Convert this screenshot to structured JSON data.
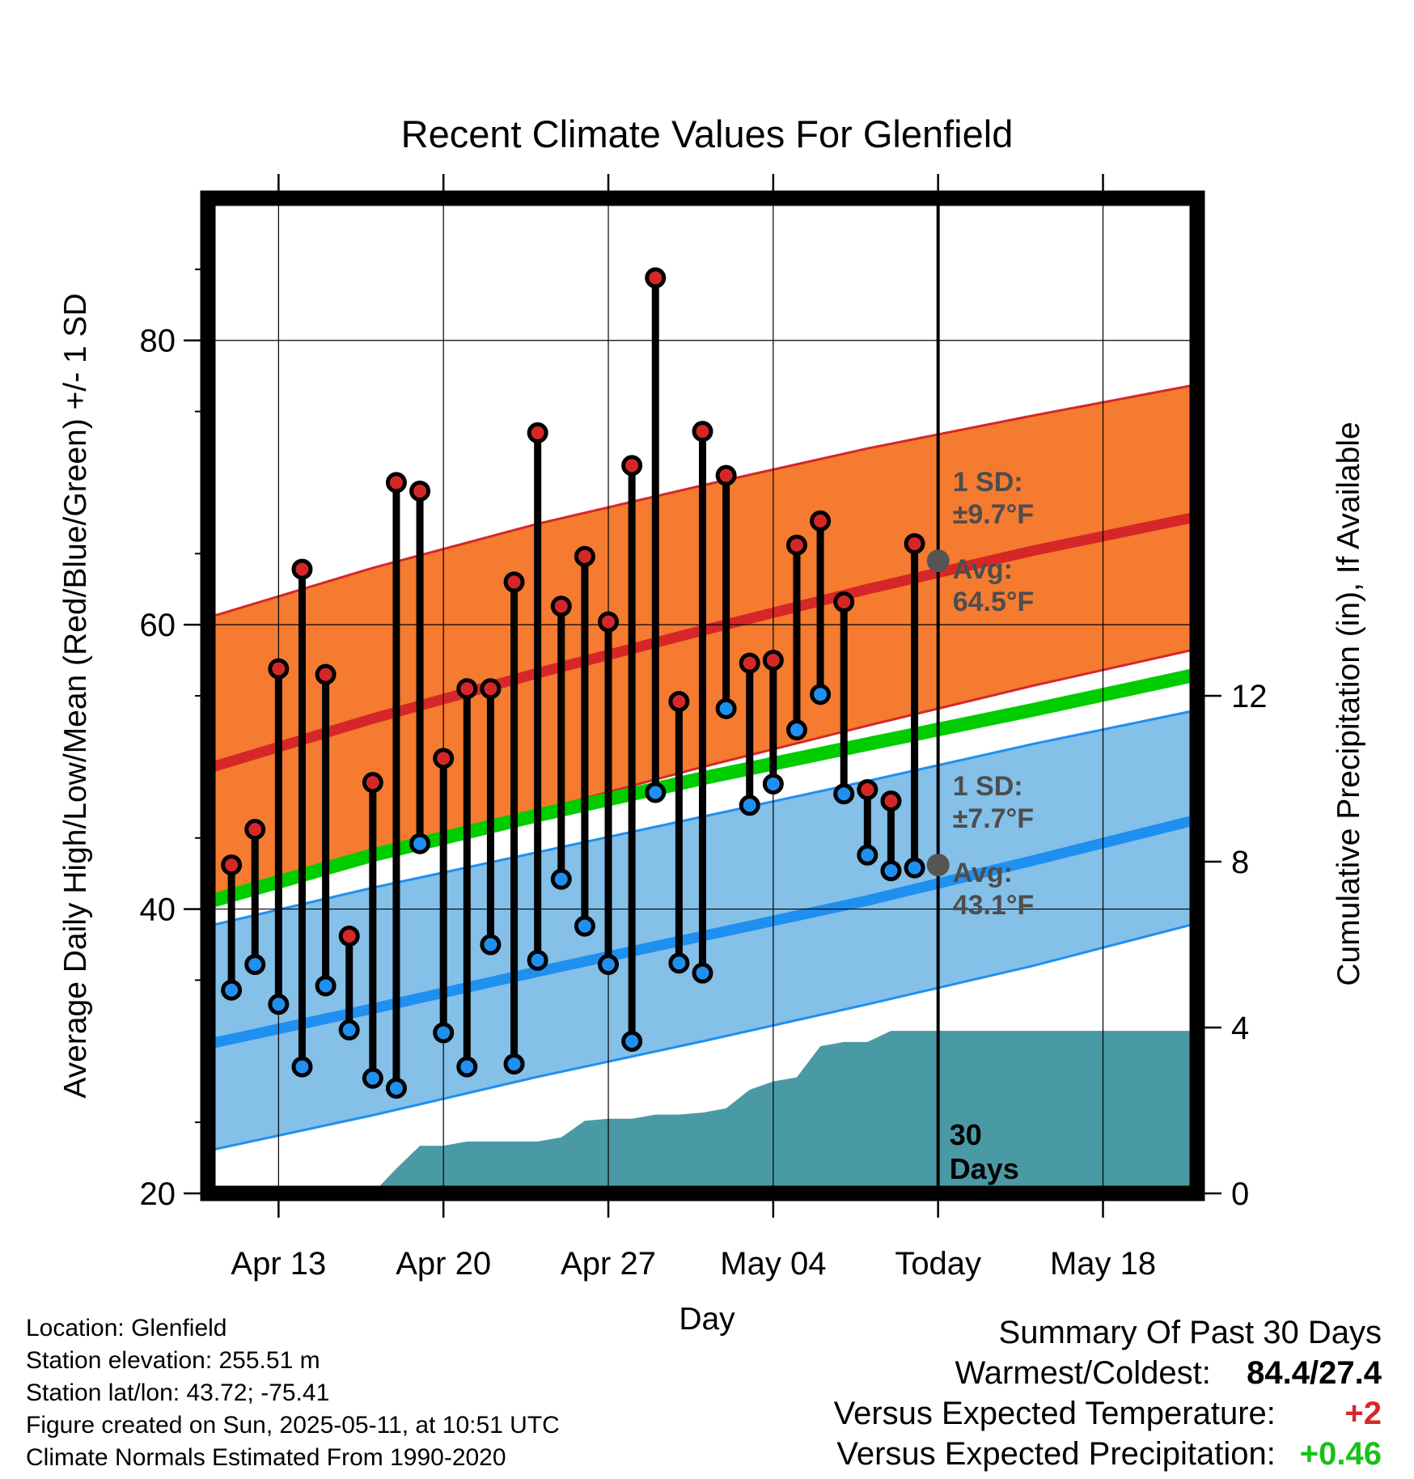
{
  "chart_data": {
    "type": "line",
    "title": "Recent Climate Values For Glenfield",
    "xlabel": "Day",
    "ylabel": "Average Daily High/Low/Mean (Red/Blue/Green) +/- 1 SD",
    "y2label": "Cumulative Precipitation (in), If Available",
    "ylim": [
      20,
      90
    ],
    "y2lim": [
      0,
      24
    ],
    "xlim": [
      "2025-04-10",
      "2025-05-22"
    ],
    "x_ticks": [
      {
        "date": "2025-04-13",
        "label": "Apr 13"
      },
      {
        "date": "2025-04-20",
        "label": "Apr 20"
      },
      {
        "date": "2025-04-27",
        "label": "Apr 27"
      },
      {
        "date": "2025-05-04",
        "label": "May 04"
      },
      {
        "date": "2025-05-11",
        "label": "Today"
      },
      {
        "date": "2025-05-18",
        "label": "May 18"
      }
    ],
    "y_ticks": [
      20,
      40,
      60,
      80
    ],
    "y2_ticks": [
      0,
      4,
      8,
      12
    ],
    "grid": true,
    "today": "2025-05-11",
    "normals": {
      "x": [
        "2025-04-10",
        "2025-04-17",
        "2025-04-24",
        "2025-05-01",
        "2025-05-08",
        "2025-05-15",
        "2025-05-22"
      ],
      "high_avg": [
        49.9,
        53.4,
        56.6,
        59.6,
        62.5,
        65.2,
        67.6
      ],
      "high_upper": [
        60.5,
        64.0,
        67.1,
        69.8,
        72.4,
        74.7,
        76.9
      ],
      "high_lower": [
        40.3,
        43.7,
        46.9,
        50.0,
        52.9,
        55.7,
        58.3
      ],
      "mean_avg": [
        40.5,
        43.8,
        46.6,
        49.2,
        51.6,
        54.0,
        56.5
      ],
      "low_avg": [
        30.5,
        33.0,
        35.6,
        38.1,
        40.6,
        43.4,
        46.3
      ],
      "low_upper": [
        38.8,
        41.5,
        44.0,
        46.5,
        49.0,
        51.6,
        54.0
      ],
      "low_lower": [
        23.0,
        25.5,
        28.2,
        30.7,
        33.3,
        36.0,
        39.0
      ]
    },
    "series": [
      {
        "name": "Daily High",
        "color": "#d62728",
        "x": [
          "2025-04-11",
          "2025-04-12",
          "2025-04-13",
          "2025-04-14",
          "2025-04-15",
          "2025-04-16",
          "2025-04-17",
          "2025-04-18",
          "2025-04-19",
          "2025-04-20",
          "2025-04-21",
          "2025-04-22",
          "2025-04-23",
          "2025-04-24",
          "2025-04-25",
          "2025-04-26",
          "2025-04-27",
          "2025-04-28",
          "2025-04-29",
          "2025-04-30",
          "2025-05-01",
          "2025-05-02",
          "2025-05-03",
          "2025-05-04",
          "2025-05-05",
          "2025-05-06",
          "2025-05-07",
          "2025-05-08",
          "2025-05-09",
          "2025-05-10"
        ],
        "values": [
          43.1,
          45.6,
          56.9,
          63.9,
          56.5,
          38.1,
          48.9,
          70.0,
          69.4,
          50.6,
          55.5,
          55.5,
          63.0,
          73.5,
          61.3,
          64.8,
          60.2,
          71.2,
          84.4,
          54.6,
          73.6,
          70.5,
          57.3,
          57.5,
          65.6,
          67.3,
          61.6,
          48.4,
          47.6,
          65.7
        ]
      },
      {
        "name": "Daily Low",
        "color": "#1f8ff0",
        "x": [
          "2025-04-11",
          "2025-04-12",
          "2025-04-13",
          "2025-04-14",
          "2025-04-15",
          "2025-04-16",
          "2025-04-17",
          "2025-04-18",
          "2025-04-19",
          "2025-04-20",
          "2025-04-21",
          "2025-04-22",
          "2025-04-23",
          "2025-04-24",
          "2025-04-25",
          "2025-04-26",
          "2025-04-27",
          "2025-04-28",
          "2025-04-29",
          "2025-04-30",
          "2025-05-01",
          "2025-05-02",
          "2025-05-03",
          "2025-05-04",
          "2025-05-05",
          "2025-05-06",
          "2025-05-07",
          "2025-05-08",
          "2025-05-09",
          "2025-05-10"
        ],
        "values": [
          34.3,
          36.1,
          33.3,
          28.9,
          34.6,
          31.5,
          28.1,
          27.4,
          44.6,
          31.3,
          28.9,
          37.5,
          29.1,
          36.4,
          42.1,
          38.8,
          36.1,
          30.7,
          48.2,
          36.2,
          35.5,
          54.1,
          47.3,
          48.8,
          52.6,
          55.1,
          48.1,
          43.8,
          42.7,
          42.9
        ]
      },
      {
        "name": "Cumulative Precipitation",
        "axis": "right",
        "color": "#4a9aa5",
        "x": [
          "2025-04-10",
          "2025-04-17",
          "2025-04-18",
          "2025-04-19",
          "2025-04-20",
          "2025-04-21",
          "2025-04-22",
          "2025-04-23",
          "2025-04-24",
          "2025-04-25",
          "2025-04-26",
          "2025-04-27",
          "2025-04-28",
          "2025-04-29",
          "2025-04-30",
          "2025-05-01",
          "2025-05-02",
          "2025-05-03",
          "2025-05-04",
          "2025-05-05",
          "2025-05-06",
          "2025-05-07",
          "2025-05-08",
          "2025-05-09",
          "2025-05-22"
        ],
        "values": [
          0.0,
          0.0,
          0.6,
          1.15,
          1.15,
          1.25,
          1.25,
          1.25,
          1.25,
          1.35,
          1.75,
          1.8,
          1.8,
          1.9,
          1.9,
          1.95,
          2.05,
          2.5,
          2.7,
          2.8,
          3.55,
          3.65,
          3.65,
          3.92,
          3.92
        ]
      }
    ],
    "annotations": {
      "high_sd_line1": "1 SD:",
      "high_sd_line2": "±9.7°F",
      "high_avg_line1": "Avg:",
      "high_avg_line2": "64.5°F",
      "low_sd_line1": "1 SD:",
      "low_sd_line2": "±7.7°F",
      "low_avg_line1": "Avg:",
      "low_avg_line2": "43.1°F",
      "days_line1": "30",
      "days_line2": "Days"
    },
    "colors": {
      "high_band": "#f47b30",
      "high_line": "#d62728",
      "low_band": "#84c0e8",
      "low_line": "#1f8ff0",
      "mean_line": "#00cc00",
      "precip": "#4a9aa5",
      "marker_today": "#555555"
    }
  },
  "info": {
    "location": "Location: Glenfield",
    "elevation": "Station elevation: 255.51 m",
    "latlon": "Station lat/lon: 43.72; -75.41",
    "created": "Figure created on Sun, 2025-05-11, at 10:51 UTC",
    "normals": "Climate Normals Estimated From 1990-2020"
  },
  "summary": {
    "heading": "Summary Of Past 30 Days",
    "warmest_label": "Warmest/Coldest:",
    "warmest_value": "84.4/27.4",
    "temp_label": "Versus Expected Temperature:",
    "temp_value": "+2",
    "precip_label": "Versus Expected Precipitation:",
    "precip_value": "+0.46"
  }
}
